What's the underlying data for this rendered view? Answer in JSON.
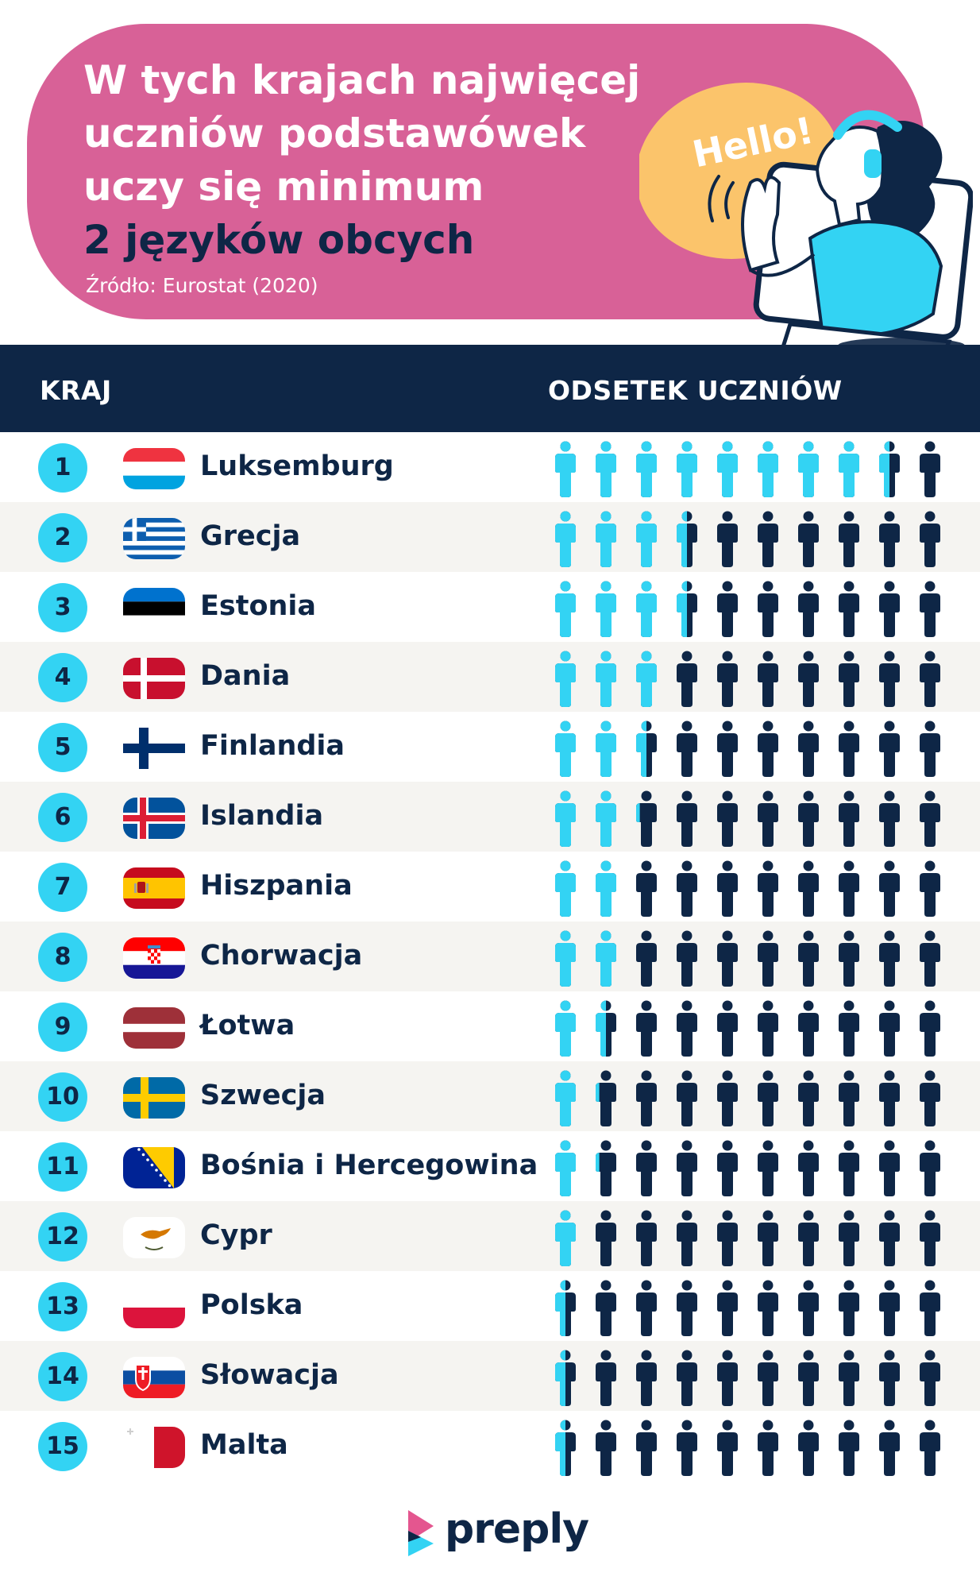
{
  "header": {
    "title_lines": [
      "W tych krajach najwięcej",
      "uczniów podstawówek",
      "uczy się minimum"
    ],
    "title_highlight": "2 języków obcych",
    "source": "Źródło: Eurostat (2020)",
    "bubble_text": "Hello!"
  },
  "columns": {
    "country": "KRAJ",
    "percentage": "ODSETEK UCZNIÓW"
  },
  "colors": {
    "pink": "#d86197",
    "navy": "#0e2646",
    "cyan": "#33d3f3",
    "yellow": "#fbc46b",
    "row_alt": "#f5f4f1"
  },
  "chart_data": {
    "type": "pictogram",
    "icons_per_row": 10,
    "value_unit": "percent",
    "rows": [
      {
        "rank": "1",
        "country": "Luksemburg",
        "flag": "luxembourg",
        "value": 85
      },
      {
        "rank": "2",
        "country": "Grecja",
        "flag": "greece",
        "value": 35
      },
      {
        "rank": "3",
        "country": "Estonia",
        "flag": "estonia",
        "value": 35
      },
      {
        "rank": "4",
        "country": "Dania",
        "flag": "denmark",
        "value": 30
      },
      {
        "rank": "5",
        "country": "Finlandia",
        "flag": "finland",
        "value": 25
      },
      {
        "rank": "6",
        "country": "Islandia",
        "flag": "iceland",
        "value": 22
      },
      {
        "rank": "7",
        "country": "Hiszpania",
        "flag": "spain",
        "value": 20
      },
      {
        "rank": "8",
        "country": "Chorwacja",
        "flag": "croatia",
        "value": 20
      },
      {
        "rank": "9",
        "country": "Łotwa",
        "flag": "latvia",
        "value": 15
      },
      {
        "rank": "10",
        "country": "Szwecja",
        "flag": "sweden",
        "value": 12
      },
      {
        "rank": "11",
        "country": "Bośnia i Hercegowina",
        "flag": "bosnia",
        "value": 12
      },
      {
        "rank": "12",
        "country": "Cypr",
        "flag": "cyprus",
        "value": 10
      },
      {
        "rank": "13",
        "country": "Polska",
        "flag": "poland",
        "value": 5
      },
      {
        "rank": "14",
        "country": "Słowacja",
        "flag": "slovakia",
        "value": 5
      },
      {
        "rank": "15",
        "country": "Malta",
        "flag": "malta",
        "value": 5
      }
    ]
  },
  "brand": {
    "name": "preply",
    "icon": "preply-logo-icon"
  }
}
